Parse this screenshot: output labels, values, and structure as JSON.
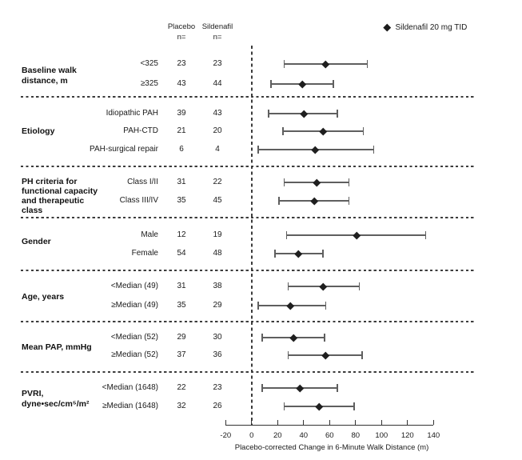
{
  "figure": {
    "background": "#ffffff",
    "text_color": "#1a1a1a"
  },
  "columns": {
    "placebo": "Placebo",
    "sildenafil": "Sildenafil",
    "n_label": "n="
  },
  "legend": {
    "marker": "diamond-icon",
    "marker_color": "#1c1c1c",
    "label": "Sildenafil 20 mg TID"
  },
  "chart_data": {
    "type": "forest",
    "title": "",
    "xlabel": "Placebo-corrected Change in 6-Minute Walk Distance (m)",
    "xlim": [
      -20,
      140
    ],
    "xticks": [
      -20,
      0,
      20,
      40,
      60,
      80,
      100,
      120,
      140
    ],
    "reference_line_x": 0,
    "grid": false,
    "legend_position": "top-right",
    "marker_color": "#1f1f1f",
    "bar_color": "#5f5f5f",
    "groups": [
      {
        "label_lines": [
          "Baseline walk",
          "distance, m"
        ],
        "rows": [
          {
            "label": "<325",
            "placebo_n": "23",
            "sildenafil_n": "23",
            "estimate": 57,
            "ci_low": 25,
            "ci_high": 89
          },
          {
            "label": "≥325",
            "placebo_n": "43",
            "sildenafil_n": "44",
            "estimate": 39,
            "ci_low": 15,
            "ci_high": 63
          }
        ]
      },
      {
        "label_lines": [
          "Etiology"
        ],
        "rows": [
          {
            "label": "Idiopathic PAH",
            "placebo_n": "39",
            "sildenafil_n": "43",
            "estimate": 40,
            "ci_low": 13,
            "ci_high": 66
          },
          {
            "label": "PAH-CTD",
            "placebo_n": "21",
            "sildenafil_n": "20",
            "estimate": 55,
            "ci_low": 24,
            "ci_high": 86
          },
          {
            "label": "PAH-surgical repair",
            "placebo_n": "6",
            "sildenafil_n": "4",
            "estimate": 49,
            "ci_low": 5,
            "ci_high": 94
          }
        ]
      },
      {
        "label_lines": [
          "PH criteria for",
          "functional capacity",
          "and therapeutic",
          "class"
        ],
        "rows": [
          {
            "label": "Class I/II",
            "placebo_n": "31",
            "sildenafil_n": "22",
            "estimate": 50,
            "ci_low": 25,
            "ci_high": 75
          },
          {
            "label": "Class III/IV",
            "placebo_n": "35",
            "sildenafil_n": "45",
            "estimate": 48,
            "ci_low": 21,
            "ci_high": 75
          }
        ]
      },
      {
        "label_lines": [
          "Gender"
        ],
        "rows": [
          {
            "label": "Male",
            "placebo_n": "12",
            "sildenafil_n": "19",
            "estimate": 81,
            "ci_low": 27,
            "ci_high": 134
          },
          {
            "label": "Female",
            "placebo_n": "54",
            "sildenafil_n": "48",
            "estimate": 36,
            "ci_low": 18,
            "ci_high": 55
          }
        ]
      },
      {
        "label_lines": [
          "Age, years"
        ],
        "rows": [
          {
            "label": "<Median (49)",
            "placebo_n": "31",
            "sildenafil_n": "38",
            "estimate": 55,
            "ci_low": 28,
            "ci_high": 83
          },
          {
            "label": "≥Median (49)",
            "placebo_n": "35",
            "sildenafil_n": "29",
            "estimate": 30,
            "ci_low": 5,
            "ci_high": 57
          }
        ]
      },
      {
        "label_lines": [
          "Mean PAP, mmHg"
        ],
        "rows": [
          {
            "label": "<Median (52)",
            "placebo_n": "29",
            "sildenafil_n": "30",
            "estimate": 32,
            "ci_low": 8,
            "ci_high": 56
          },
          {
            "label": "≥Median (52)",
            "placebo_n": "37",
            "sildenafil_n": "36",
            "estimate": 57,
            "ci_low": 28,
            "ci_high": 85
          }
        ]
      },
      {
        "label_lines": [
          "PVRI,",
          "dyne•sec/cm⁵/m²"
        ],
        "rows": [
          {
            "label": "<Median (1648)",
            "placebo_n": "22",
            "sildenafil_n": "23",
            "estimate": 37,
            "ci_low": 8,
            "ci_high": 66
          },
          {
            "label": "≥Median (1648)",
            "placebo_n": "32",
            "sildenafil_n": "26",
            "estimate": 52,
            "ci_low": 25,
            "ci_high": 79
          }
        ]
      }
    ]
  }
}
